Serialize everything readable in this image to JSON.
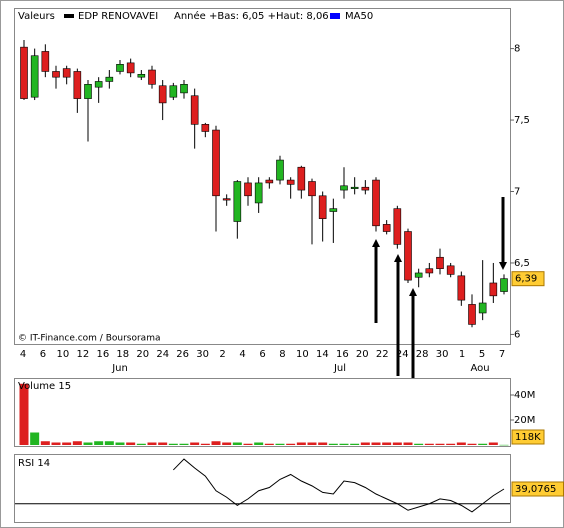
{
  "chart_data": [
    {
      "type": "candlestick",
      "legend_title": "Valeurs",
      "legend": [
        {
          "name": "EDP RENOVAVEI",
          "color": "#000000"
        },
        {
          "name": "MA50",
          "color": "#0000ff"
        }
      ],
      "subtitle": "Année +Bas: 6,05 +Haut: 8,06",
      "source": "© IT-Finance.com / Boursorama",
      "up_color": "#22b522",
      "down_color": "#dd1f1f",
      "ohlc": [
        [
          8.01,
          8.06,
          7.64,
          7.65
        ],
        [
          7.66,
          8.0,
          7.64,
          7.95
        ],
        [
          7.98,
          8.03,
          7.8,
          7.84
        ],
        [
          7.84,
          7.88,
          7.72,
          7.8
        ],
        [
          7.86,
          7.88,
          7.75,
          7.8
        ],
        [
          7.84,
          7.86,
          7.55,
          7.65
        ],
        [
          7.65,
          7.78,
          7.35,
          7.75
        ],
        [
          7.73,
          7.8,
          7.62,
          7.77
        ],
        [
          7.77,
          7.85,
          7.72,
          7.8
        ],
        [
          7.84,
          7.92,
          7.82,
          7.89
        ],
        [
          7.9,
          7.93,
          7.8,
          7.83
        ],
        [
          7.8,
          7.85,
          7.78,
          7.82
        ],
        [
          7.85,
          7.88,
          7.72,
          7.75
        ],
        [
          7.74,
          7.78,
          7.5,
          7.62
        ],
        [
          7.66,
          7.76,
          7.64,
          7.74
        ],
        [
          7.69,
          7.78,
          7.65,
          7.75
        ],
        [
          7.67,
          7.72,
          7.3,
          7.47
        ],
        [
          7.47,
          7.48,
          7.38,
          7.42
        ],
        [
          7.43,
          7.46,
          6.72,
          6.97
        ],
        [
          6.95,
          6.98,
          6.9,
          6.94
        ],
        [
          6.79,
          7.08,
          6.67,
          7.07
        ],
        [
          7.06,
          7.1,
          6.9,
          6.97
        ],
        [
          6.92,
          7.1,
          6.85,
          7.06
        ],
        [
          7.08,
          7.1,
          7.02,
          7.06
        ],
        [
          7.08,
          7.25,
          7.05,
          7.22
        ],
        [
          7.08,
          7.1,
          6.95,
          7.05
        ],
        [
          7.17,
          7.18,
          6.95,
          7.01
        ],
        [
          7.07,
          7.09,
          6.63,
          6.97
        ],
        [
          6.97,
          7.0,
          6.65,
          6.81
        ],
        [
          6.86,
          6.95,
          6.64,
          6.88
        ],
        [
          7.01,
          7.17,
          6.95,
          7.04
        ],
        [
          7.02,
          7.1,
          6.98,
          7.03
        ],
        [
          7.03,
          7.08,
          6.98,
          7.01
        ],
        [
          7.08,
          7.1,
          6.72,
          6.76
        ],
        [
          6.77,
          6.8,
          6.7,
          6.72
        ],
        [
          6.88,
          6.9,
          6.6,
          6.63
        ],
        [
          6.72,
          6.74,
          6.36,
          6.38
        ],
        [
          6.4,
          6.46,
          6.33,
          6.43
        ],
        [
          6.46,
          6.5,
          6.4,
          6.43
        ],
        [
          6.54,
          6.6,
          6.42,
          6.46
        ],
        [
          6.48,
          6.5,
          6.4,
          6.42
        ],
        [
          6.41,
          6.44,
          6.2,
          6.24
        ],
        [
          6.21,
          6.28,
          6.05,
          6.07
        ],
        [
          6.15,
          6.52,
          6.1,
          6.22
        ],
        [
          6.36,
          6.5,
          6.22,
          6.27
        ],
        [
          6.3,
          6.42,
          6.28,
          6.39
        ]
      ],
      "x_tick_labels": [
        "4",
        "6",
        "10",
        "12",
        "16",
        "18",
        "20",
        "24",
        "26",
        "30",
        "2",
        "4",
        "6",
        "8",
        "10",
        "14",
        "16",
        "20",
        "22",
        "24",
        "28",
        "30",
        "1",
        "5",
        "7"
      ],
      "months": [
        "Jun",
        "Jul",
        "Aou"
      ],
      "ylim": [
        5.94,
        8.27
      ],
      "yticks": [
        {
          "value": 8,
          "label": "8"
        },
        {
          "value": 7.5,
          "label": "7,5"
        },
        {
          "value": 7,
          "label": "7"
        },
        {
          "value": 6.5,
          "label": "6,5"
        },
        {
          "value": 6,
          "label": "6"
        }
      ],
      "last_value": {
        "value": 6.39,
        "label": "6,39"
      }
    },
    {
      "type": "bar",
      "title": "Volume 15",
      "values": [
        49,
        10,
        3,
        2,
        2,
        3,
        2,
        3,
        3,
        2,
        2,
        1,
        2,
        2,
        1,
        1,
        2,
        1,
        3,
        2,
        2,
        1,
        2,
        1,
        1,
        1,
        2,
        2,
        2,
        1,
        1,
        1,
        2,
        2,
        2,
        2,
        2,
        1,
        1,
        1,
        1,
        2,
        1,
        1,
        2,
        0.118
      ],
      "ylim": [
        0,
        52
      ],
      "yticks": [
        {
          "value": 40,
          "label": "40M"
        },
        {
          "value": 20,
          "label": "20M"
        }
      ],
      "last_value": {
        "value": 0.118,
        "label": "118K"
      }
    },
    {
      "type": "line",
      "title": "RSI 14",
      "color": "#000000",
      "values": [
        null,
        null,
        null,
        null,
        null,
        null,
        null,
        null,
        null,
        null,
        null,
        null,
        null,
        null,
        50.8,
        57.5,
        52,
        47,
        38,
        34,
        29,
        33,
        38,
        40,
        45,
        48,
        44,
        41,
        37,
        36,
        44,
        43,
        40,
        36,
        33,
        30,
        26,
        28,
        30,
        33,
        32,
        29,
        25,
        30,
        35,
        39.0765
      ],
      "ylim": [
        20,
        60
      ],
      "reference_line": 30,
      "last_value": {
        "value": 39.0765,
        "label": "39,0765"
      }
    }
  ]
}
